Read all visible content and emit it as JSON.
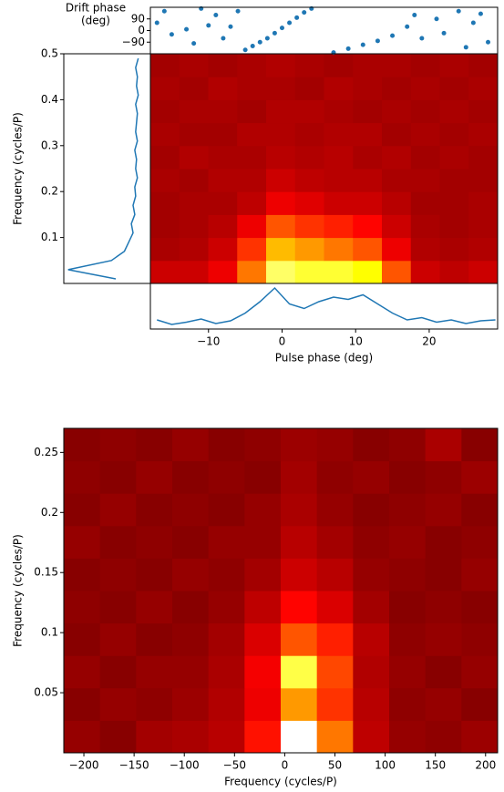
{
  "chart_data": [
    {
      "type": "heatmap",
      "colormap": "hot",
      "xlim": [
        -17.9,
        29.3
      ],
      "ylim": [
        0,
        0.5
      ],
      "z": [
        [
          0.3,
          0.3,
          0.35,
          0.55,
          0.85,
          0.8,
          0.8,
          0.75,
          0.5,
          0.3,
          0.28,
          0.3
        ],
        [
          0.25,
          0.26,
          0.3,
          0.45,
          0.65,
          0.6,
          0.55,
          0.5,
          0.35,
          0.26,
          0.25,
          0.26
        ],
        [
          0.24,
          0.25,
          0.27,
          0.35,
          0.5,
          0.45,
          0.42,
          0.38,
          0.3,
          0.25,
          0.24,
          0.25
        ],
        [
          0.24,
          0.25,
          0.25,
          0.28,
          0.35,
          0.33,
          0.3,
          0.3,
          0.27,
          0.24,
          0.24,
          0.25
        ],
        [
          0.25,
          0.24,
          0.26,
          0.26,
          0.3,
          0.28,
          0.27,
          0.27,
          0.25,
          0.25,
          0.24,
          0.24
        ],
        [
          0.24,
          0.26,
          0.25,
          0.25,
          0.27,
          0.26,
          0.27,
          0.25,
          0.26,
          0.24,
          0.25,
          0.24
        ],
        [
          0.25,
          0.24,
          0.24,
          0.26,
          0.26,
          0.25,
          0.26,
          0.26,
          0.24,
          0.25,
          0.24,
          0.25
        ],
        [
          0.24,
          0.25,
          0.25,
          0.24,
          0.26,
          0.26,
          0.25,
          0.24,
          0.25,
          0.24,
          0.25,
          0.24
        ],
        [
          0.25,
          0.24,
          0.26,
          0.25,
          0.25,
          0.24,
          0.26,
          0.25,
          0.24,
          0.25,
          0.24,
          0.25
        ],
        [
          0.24,
          0.25,
          0.24,
          0.25,
          0.26,
          0.25,
          0.24,
          0.25,
          0.25,
          0.24,
          0.25,
          0.24
        ]
      ]
    },
    {
      "type": "line",
      "color": "#1f77b4",
      "xlabel": "Pulse phase (deg)",
      "xlim": [
        -17.9,
        29.3
      ],
      "ylim": [
        0,
        1
      ],
      "xticks": [
        {
          "value": -10,
          "label": "−10"
        },
        0,
        10,
        20
      ],
      "x": [
        -17,
        -15,
        -13,
        -11,
        -9,
        -7,
        -5,
        -3,
        -1,
        1,
        3,
        5,
        7,
        9,
        11,
        13,
        15,
        17,
        19,
        21,
        23,
        25,
        27,
        29
      ],
      "values": [
        0.2,
        0.1,
        0.15,
        0.22,
        0.12,
        0.18,
        0.35,
        0.6,
        0.9,
        0.55,
        0.45,
        0.6,
        0.7,
        0.65,
        0.75,
        0.55,
        0.35,
        0.2,
        0.25,
        0.15,
        0.2,
        0.12,
        0.18,
        0.2
      ]
    },
    {
      "type": "line",
      "orientation": "vertical",
      "color": "#1f77b4",
      "ylabel": "Frequency (cycles/P)",
      "xlim": [
        1,
        0
      ],
      "ylim": [
        0,
        0.5
      ],
      "yticks": [
        0.1,
        0.2,
        0.3,
        0.4,
        0.5
      ],
      "x": [
        0.01,
        0.03,
        0.05,
        0.07,
        0.09,
        0.11,
        0.13,
        0.15,
        0.17,
        0.19,
        0.21,
        0.23,
        0.25,
        0.27,
        0.29,
        0.31,
        0.33,
        0.35,
        0.37,
        0.39,
        0.41,
        0.43,
        0.45,
        0.47,
        0.49
      ],
      "values": [
        0.4,
        0.95,
        0.45,
        0.3,
        0.25,
        0.2,
        0.22,
        0.18,
        0.2,
        0.17,
        0.18,
        0.15,
        0.17,
        0.16,
        0.18,
        0.15,
        0.17,
        0.16,
        0.15,
        0.17,
        0.14,
        0.16,
        0.15,
        0.17,
        0.14
      ]
    },
    {
      "type": "scatter",
      "color": "#1f77b4",
      "ylabel": [
        "Drift phase",
        "(deg)"
      ],
      "xlim": [
        -17.9,
        29.3
      ],
      "ylim": [
        -180,
        180
      ],
      "yticks": [
        90,
        0,
        {
          "value": -90,
          "label": "−90"
        }
      ],
      "x": [
        -17,
        -16,
        -15,
        -13,
        -12,
        -11,
        -10,
        -9,
        -8,
        -7,
        -6,
        -5,
        -4,
        -3,
        -2,
        -1,
        0,
        1,
        2,
        3,
        4,
        7,
        9,
        11,
        13,
        15,
        17,
        18,
        19,
        21,
        22,
        24,
        25,
        26,
        27,
        28
      ],
      "values": [
        60,
        150,
        -30,
        10,
        -100,
        170,
        40,
        120,
        -60,
        30,
        150,
        -150,
        -120,
        -90,
        -60,
        -20,
        20,
        60,
        100,
        140,
        170,
        -170,
        -140,
        -110,
        -80,
        -40,
        30,
        120,
        -60,
        90,
        -20,
        150,
        -130,
        60,
        130,
        -90
      ]
    },
    {
      "type": "heatmap",
      "colormap": "hot",
      "xlabel": "Frequency (cycles/P)",
      "ylabel": "Frequency (cycles/P)",
      "xlim": [
        -220,
        212
      ],
      "ylim": [
        0,
        0.27
      ],
      "xticks": [
        {
          "value": -200,
          "label": "−200"
        },
        {
          "value": -150,
          "label": "−150"
        },
        {
          "value": -100,
          "label": "−100"
        },
        {
          "value": -50,
          "label": "−50"
        },
        0,
        50,
        100,
        150,
        200
      ],
      "yticks": [
        0.05,
        0.1,
        0.15,
        0.2,
        0.25
      ],
      "z": [
        [
          0.22,
          0.2,
          0.24,
          0.25,
          0.27,
          0.4,
          1.0,
          0.55,
          0.28,
          0.22,
          0.21,
          0.23
        ],
        [
          0.2,
          0.22,
          0.21,
          0.23,
          0.26,
          0.35,
          0.6,
          0.45,
          0.27,
          0.21,
          0.22,
          0.2
        ],
        [
          0.22,
          0.2,
          0.22,
          0.22,
          0.25,
          0.36,
          0.82,
          0.48,
          0.26,
          0.22,
          0.2,
          0.22
        ],
        [
          0.2,
          0.22,
          0.2,
          0.21,
          0.24,
          0.32,
          0.5,
          0.42,
          0.27,
          0.21,
          0.22,
          0.21
        ],
        [
          0.21,
          0.2,
          0.22,
          0.2,
          0.22,
          0.28,
          0.38,
          0.32,
          0.24,
          0.2,
          0.21,
          0.2
        ],
        [
          0.2,
          0.21,
          0.2,
          0.22,
          0.21,
          0.24,
          0.3,
          0.27,
          0.22,
          0.21,
          0.2,
          0.22
        ],
        [
          0.22,
          0.2,
          0.21,
          0.2,
          0.22,
          0.22,
          0.27,
          0.24,
          0.21,
          0.22,
          0.2,
          0.21
        ],
        [
          0.2,
          0.22,
          0.2,
          0.21,
          0.2,
          0.22,
          0.25,
          0.22,
          0.2,
          0.21,
          0.22,
          0.2
        ],
        [
          0.21,
          0.2,
          0.22,
          0.2,
          0.21,
          0.2,
          0.24,
          0.21,
          0.22,
          0.2,
          0.21,
          0.23
        ],
        [
          0.2,
          0.21,
          0.2,
          0.22,
          0.2,
          0.21,
          0.23,
          0.22,
          0.2,
          0.21,
          0.25,
          0.2
        ]
      ]
    }
  ]
}
